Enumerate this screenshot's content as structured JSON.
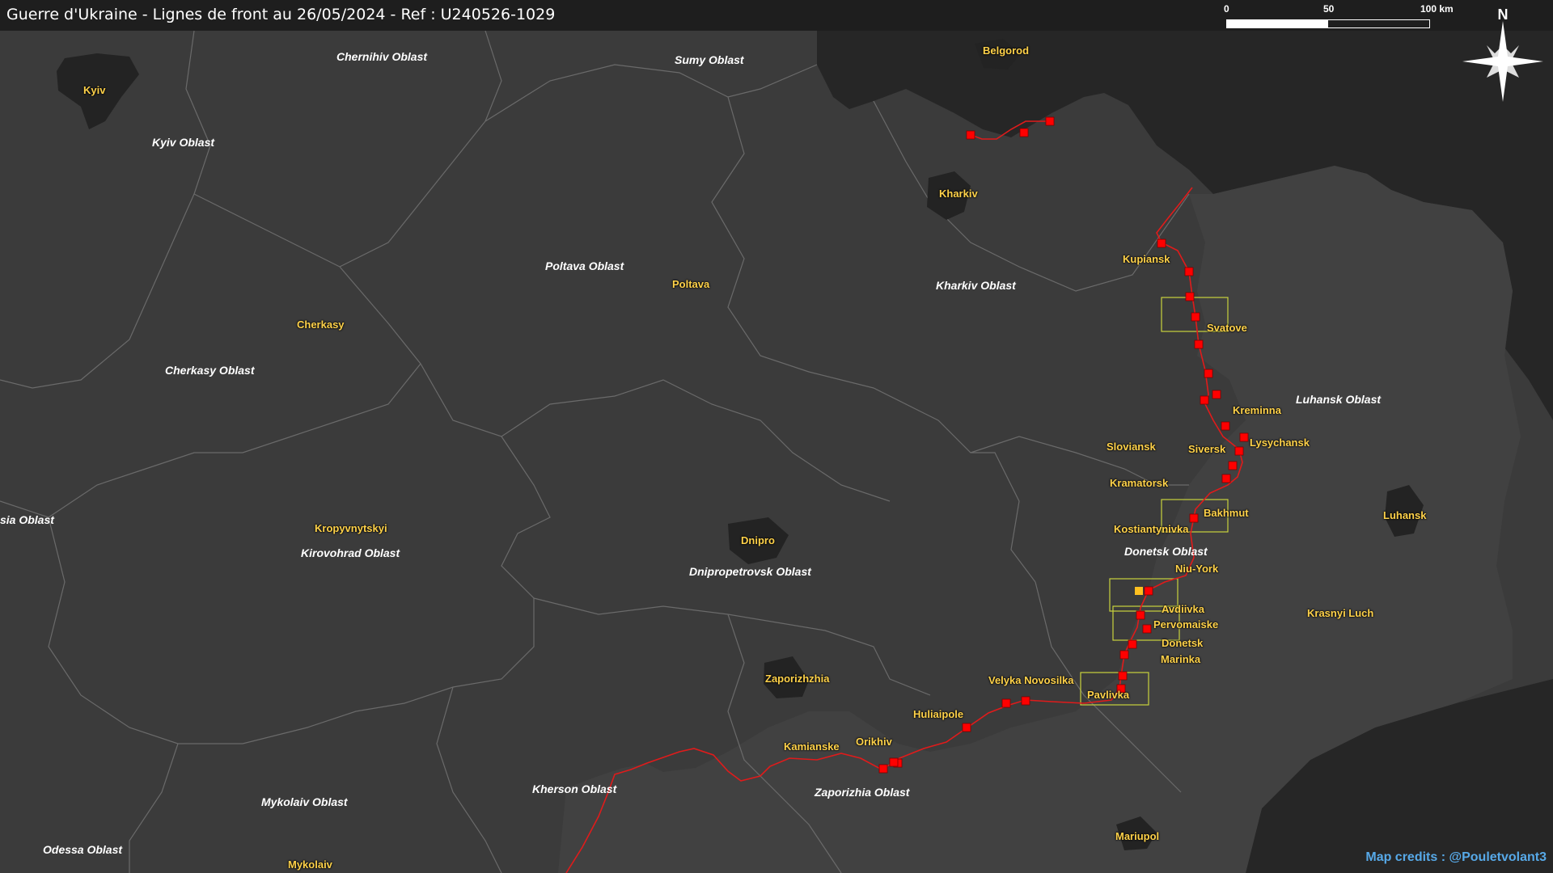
{
  "header": {
    "title": "Guerre d'Ukraine - Lignes de front au 26/05/2024 - Ref : U240526-1029"
  },
  "scale": {
    "unit": "km",
    "labels": [
      "0",
      "50",
      "100 km"
    ]
  },
  "compass": {
    "letter": "N",
    "icon": "compass-rose-icon"
  },
  "colors": {
    "ukraine_land": "#3b3b3b",
    "russia_land": "#262626",
    "borders": "#6a6a6a",
    "front_line": "#e01b1b",
    "marker": "#ff0000",
    "marker_highlight": "#ffc020",
    "focus_box": "#c8d23c",
    "city_label": "#ffd24a",
    "oblast_label": "#ffffff",
    "credits": "#57a9e8"
  },
  "oblasts": [
    {
      "name": "Chernihiv Oblast"
    },
    {
      "name": "Sumy Oblast"
    },
    {
      "name": "Kyiv Oblast"
    },
    {
      "name": "Poltava Oblast"
    },
    {
      "name": "Kharkiv Oblast"
    },
    {
      "name": "Cherkasy Oblast"
    },
    {
      "name": "Luhansk Oblast"
    },
    {
      "name": "sia Oblast"
    },
    {
      "name": "Kirovohrad Oblast"
    },
    {
      "name": "Donetsk Oblast"
    },
    {
      "name": "Dnipropetrovsk Oblast"
    },
    {
      "name": "Kherson Oblast"
    },
    {
      "name": "Zaporizhia Oblast"
    },
    {
      "name": "Mykolaiv Oblast"
    },
    {
      "name": "Odessa Oblast"
    }
  ],
  "cities": [
    {
      "name": "Kyiv"
    },
    {
      "name": "Belgorod"
    },
    {
      "name": "Kharkiv"
    },
    {
      "name": "Kupiansk"
    },
    {
      "name": "Poltava"
    },
    {
      "name": "Svatove"
    },
    {
      "name": "Cherkasy"
    },
    {
      "name": "Kreminna"
    },
    {
      "name": "Lysychansk"
    },
    {
      "name": "Sloviansk"
    },
    {
      "name": "Siversk"
    },
    {
      "name": "Kramatorsk"
    },
    {
      "name": "Bakhmut"
    },
    {
      "name": "Kostiantynivka"
    },
    {
      "name": "Kropyvnytskyi"
    },
    {
      "name": "Luhansk"
    },
    {
      "name": "Dnipro"
    },
    {
      "name": "Niu-York"
    },
    {
      "name": "Avdiivka"
    },
    {
      "name": "Pervomaiske"
    },
    {
      "name": "Krasnyi Luch"
    },
    {
      "name": "Donetsk"
    },
    {
      "name": "Marinka"
    },
    {
      "name": "Zaporizhzhia"
    },
    {
      "name": "Velyka Novosilka"
    },
    {
      "name": "Pavlivka"
    },
    {
      "name": "Huliaipole"
    },
    {
      "name": "Orikhiv"
    },
    {
      "name": "Kamianske"
    },
    {
      "name": "Mariupol"
    },
    {
      "name": "Mykolaiv"
    }
  ],
  "credits": "Map credits : @Pouletvolant3"
}
